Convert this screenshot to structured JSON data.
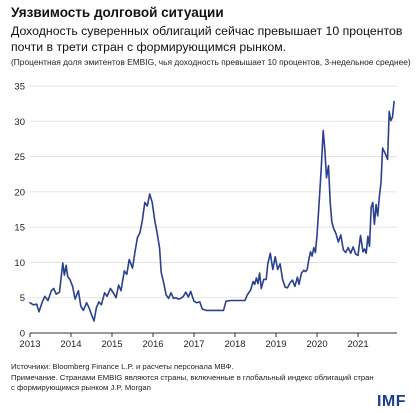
{
  "header": {
    "title": "Уязвимость долговой ситуации",
    "subtitle": "Доходность суверенных облигаций сейчас превышает 10 процентов почти в трети стран с формирующимся рынком.",
    "note": "(Процентная доля эмитентов EMBIG, чья доходность превышает 10 процентов, 3-недельное среднее)"
  },
  "footer": {
    "source": "Источники: Bloomberg Finance L.P. и расчеты персонала МВФ.",
    "note_line1": "Примечание. Странами EMBIG являются страны, включенные в глобальный индекс облигаций стран",
    "note_line2": "с формирующимся рынком J.P. Morgan",
    "logo": "IMF"
  },
  "colors": {
    "line": "#2b3f8f",
    "axis": "#333333",
    "grid": "#dddddd",
    "logo": "#1b3f8c"
  },
  "chart_data": {
    "type": "line",
    "ylim": [
      0,
      35
    ],
    "yticks": [
      0,
      5,
      10,
      15,
      20,
      25,
      30,
      35
    ],
    "xlim": [
      2013.0,
      2021.95
    ],
    "xticks": [
      {
        "value": 2013,
        "label": "2013"
      },
      {
        "value": 2014,
        "label": "2014"
      },
      {
        "value": 2015,
        "label": "2015"
      },
      {
        "value": 2016,
        "label": "2016"
      },
      {
        "value": 2017,
        "label": "2017"
      },
      {
        "value": 2018,
        "label": "2018"
      },
      {
        "value": 2019,
        "label": "2019"
      },
      {
        "value": 2020,
        "label": "2020"
      },
      {
        "value": 2021,
        "label": "2021"
      }
    ],
    "series": [
      {
        "points": [
          [
            2013.0,
            4.3
          ],
          [
            2013.08,
            4.0
          ],
          [
            2013.16,
            4.1
          ],
          [
            2013.22,
            3.0
          ],
          [
            2013.3,
            4.4
          ],
          [
            2013.36,
            5.2
          ],
          [
            2013.44,
            4.6
          ],
          [
            2013.52,
            6.0
          ],
          [
            2013.58,
            6.3
          ],
          [
            2013.64,
            5.5
          ],
          [
            2013.72,
            5.8
          ],
          [
            2013.8,
            9.9
          ],
          [
            2013.84,
            8.2
          ],
          [
            2013.88,
            9.6
          ],
          [
            2013.92,
            8.0
          ],
          [
            2013.98,
            7.5
          ],
          [
            2014.04,
            6.6
          ],
          [
            2014.1,
            4.8
          ],
          [
            2014.18,
            6.0
          ],
          [
            2014.24,
            3.8
          ],
          [
            2014.3,
            3.2
          ],
          [
            2014.38,
            4.3
          ],
          [
            2014.44,
            3.6
          ],
          [
            2014.5,
            2.6
          ],
          [
            2014.56,
            1.7
          ],
          [
            2014.62,
            3.6
          ],
          [
            2014.68,
            4.4
          ],
          [
            2014.74,
            4.0
          ],
          [
            2014.82,
            5.7
          ],
          [
            2014.88,
            5.2
          ],
          [
            2014.96,
            6.3
          ],
          [
            2015.04,
            5.6
          ],
          [
            2015.1,
            5.0
          ],
          [
            2015.16,
            6.8
          ],
          [
            2015.22,
            6.0
          ],
          [
            2015.3,
            8.8
          ],
          [
            2015.36,
            8.3
          ],
          [
            2015.42,
            10.4
          ],
          [
            2015.5,
            9.2
          ],
          [
            2015.56,
            11.5
          ],
          [
            2015.62,
            13.5
          ],
          [
            2015.68,
            14.2
          ],
          [
            2015.74,
            16.0
          ],
          [
            2015.8,
            18.5
          ],
          [
            2015.86,
            18.0
          ],
          [
            2015.92,
            19.7
          ],
          [
            2015.98,
            18.5
          ],
          [
            2016.04,
            16.0
          ],
          [
            2016.1,
            14.2
          ],
          [
            2016.16,
            12.0
          ],
          [
            2016.2,
            8.6
          ],
          [
            2016.26,
            7.1
          ],
          [
            2016.32,
            5.4
          ],
          [
            2016.38,
            4.9
          ],
          [
            2016.44,
            5.7
          ],
          [
            2016.5,
            4.9
          ],
          [
            2016.56,
            5.0
          ],
          [
            2016.62,
            4.8
          ],
          [
            2016.68,
            4.9
          ],
          [
            2016.74,
            5.2
          ],
          [
            2016.8,
            5.8
          ],
          [
            2016.86,
            5.1
          ],
          [
            2016.92,
            5.9
          ],
          [
            2016.97,
            5.0
          ],
          [
            2017.0,
            4.5
          ],
          [
            2017.06,
            4.3
          ],
          [
            2017.14,
            4.4
          ],
          [
            2017.2,
            3.4
          ],
          [
            2017.3,
            3.2
          ],
          [
            2017.4,
            3.2
          ],
          [
            2017.5,
            3.2
          ],
          [
            2017.6,
            3.2
          ],
          [
            2017.72,
            3.2
          ],
          [
            2017.78,
            4.5
          ],
          [
            2017.9,
            4.6
          ],
          [
            2018.0,
            4.6
          ],
          [
            2018.14,
            4.6
          ],
          [
            2018.24,
            4.6
          ],
          [
            2018.3,
            5.4
          ],
          [
            2018.38,
            6.1
          ],
          [
            2018.44,
            7.3
          ],
          [
            2018.48,
            6.9
          ],
          [
            2018.52,
            7.8
          ],
          [
            2018.56,
            7.0
          ],
          [
            2018.6,
            8.5
          ],
          [
            2018.64,
            6.3
          ],
          [
            2018.7,
            7.6
          ],
          [
            2018.76,
            7.6
          ],
          [
            2018.8,
            9.8
          ],
          [
            2018.86,
            11.3
          ],
          [
            2018.92,
            9.0
          ],
          [
            2018.98,
            10.8
          ],
          [
            2019.04,
            9.0
          ],
          [
            2019.1,
            9.8
          ],
          [
            2019.16,
            7.6
          ],
          [
            2019.22,
            6.5
          ],
          [
            2019.28,
            6.4
          ],
          [
            2019.34,
            7.1
          ],
          [
            2019.4,
            7.5
          ],
          [
            2019.46,
            6.6
          ],
          [
            2019.52,
            7.9
          ],
          [
            2019.56,
            6.9
          ],
          [
            2019.62,
            8.5
          ],
          [
            2019.68,
            8.9
          ],
          [
            2019.72,
            8.7
          ],
          [
            2019.76,
            9.0
          ],
          [
            2019.8,
            10.4
          ],
          [
            2019.84,
            11.5
          ],
          [
            2019.88,
            10.9
          ],
          [
            2019.92,
            12.1
          ],
          [
            2019.96,
            11.4
          ],
          [
            2020.0,
            13.8
          ],
          [
            2020.04,
            17.5
          ],
          [
            2020.1,
            23.0
          ],
          [
            2020.15,
            28.7
          ],
          [
            2020.19,
            26.0
          ],
          [
            2020.23,
            22.0
          ],
          [
            2020.28,
            23.7
          ],
          [
            2020.32,
            18.5
          ],
          [
            2020.36,
            15.8
          ],
          [
            2020.4,
            14.9
          ],
          [
            2020.46,
            14.1
          ],
          [
            2020.52,
            12.9
          ],
          [
            2020.58,
            13.9
          ],
          [
            2020.64,
            11.8
          ],
          [
            2020.7,
            11.4
          ],
          [
            2020.76,
            12.1
          ],
          [
            2020.82,
            11.3
          ],
          [
            2020.88,
            12.2
          ],
          [
            2020.94,
            11.2
          ],
          [
            2021.0,
            11.0
          ],
          [
            2021.06,
            13.8
          ],
          [
            2021.12,
            11.5
          ],
          [
            2021.16,
            11.9
          ],
          [
            2021.2,
            11.3
          ],
          [
            2021.24,
            13.7
          ],
          [
            2021.28,
            12.3
          ],
          [
            2021.32,
            17.8
          ],
          [
            2021.36,
            18.5
          ],
          [
            2021.4,
            15.4
          ],
          [
            2021.44,
            18.2
          ],
          [
            2021.48,
            16.6
          ],
          [
            2021.52,
            19.4
          ],
          [
            2021.56,
            21.3
          ],
          [
            2021.6,
            26.2
          ],
          [
            2021.64,
            25.7
          ],
          [
            2021.68,
            25.2
          ],
          [
            2021.72,
            24.6
          ],
          [
            2021.76,
            31.4
          ],
          [
            2021.8,
            30.1
          ],
          [
            2021.84,
            30.6
          ],
          [
            2021.88,
            32.8
          ]
        ]
      }
    ]
  }
}
